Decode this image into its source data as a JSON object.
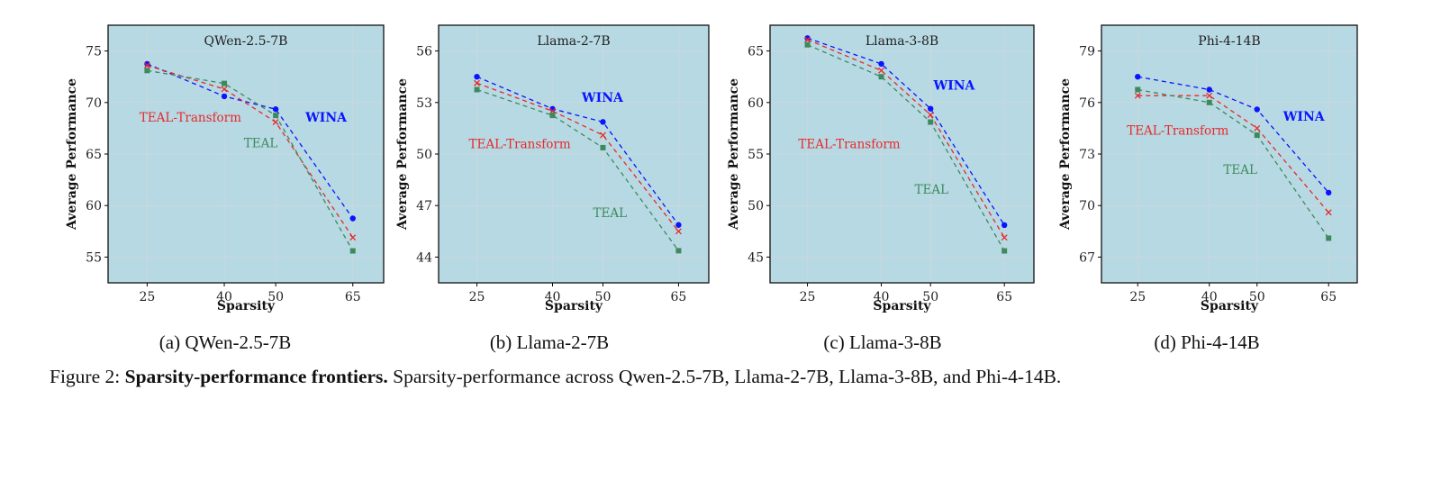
{
  "colors": {
    "background": "#b7d9e3",
    "WINA": "#0a14ff",
    "TEAL-Transform": "#e8282a",
    "TEAL": "#3d8a5c"
  },
  "chart_data": [
    {
      "type": "line",
      "title": "QWen-2.5-7B",
      "caption": "(a) QWen-2.5-7B",
      "xlabel": "Sparsity",
      "ylabel": "Average Performance",
      "x": [
        25,
        40,
        50,
        65
      ],
      "xticks": [
        25,
        40,
        50,
        65
      ],
      "xlim": [
        17.4,
        71
      ],
      "yticks": [
        55,
        60,
        65,
        70,
        75
      ],
      "ylim": [
        52.5,
        77.5
      ],
      "grid": true,
      "series": [
        {
          "name": "WINA",
          "marker": "circle",
          "values": [
            73.75,
            70.6,
            69.35,
            58.75
          ],
          "label_at": [
            59.8,
            68.6
          ]
        },
        {
          "name": "TEAL-Transform",
          "marker": "x",
          "values": [
            73.6,
            71.3,
            68.1,
            56.9
          ],
          "label_at": [
            33.4,
            68.6
          ]
        },
        {
          "name": "TEAL",
          "marker": "square",
          "values": [
            73.1,
            71.85,
            68.75,
            55.6
          ],
          "label_at": [
            47.1,
            66.1
          ]
        }
      ]
    },
    {
      "type": "line",
      "title": "Llama-2-7B",
      "caption": "(b) Llama-2-7B",
      "xlabel": "Sparsity",
      "ylabel": "Average Performance",
      "x": [
        25,
        40,
        50,
        65
      ],
      "xticks": [
        25,
        40,
        50,
        65
      ],
      "xlim": [
        17.4,
        71
      ],
      "yticks": [
        44,
        47,
        50,
        53,
        56
      ],
      "ylim": [
        42.5,
        57.5
      ],
      "grid": true,
      "series": [
        {
          "name": "WINA",
          "marker": "circle",
          "values": [
            54.5,
            52.63,
            51.87,
            45.87
          ],
          "label_at": [
            49.9,
            53.3
          ]
        },
        {
          "name": "TEAL-Transform",
          "marker": "x",
          "values": [
            54.13,
            52.5,
            51.1,
            45.5
          ],
          "label_at": [
            33.5,
            50.6
          ]
        },
        {
          "name": "TEAL",
          "marker": "square",
          "values": [
            53.75,
            52.25,
            50.37,
            44.37
          ],
          "label_at": [
            51.4,
            46.6
          ]
        }
      ]
    },
    {
      "type": "line",
      "title": "Llama-3-8B",
      "caption": "(c) Llama-3-8B",
      "xlabel": "Sparsity",
      "ylabel": "Average Performance",
      "x": [
        25,
        40,
        50,
        65
      ],
      "xticks": [
        25,
        40,
        50,
        65
      ],
      "xlim": [
        17.4,
        71
      ],
      "yticks": [
        45,
        50,
        55,
        60,
        65
      ],
      "ylim": [
        42.5,
        67.5
      ],
      "grid": true,
      "series": [
        {
          "name": "WINA",
          "marker": "circle",
          "values": [
            66.25,
            63.75,
            59.4,
            48.1
          ],
          "label_at": [
            54.8,
            61.7
          ]
        },
        {
          "name": "TEAL-Transform",
          "marker": "x",
          "values": [
            66.1,
            63.1,
            58.8,
            46.9
          ],
          "label_at": [
            33.5,
            56.0
          ]
        },
        {
          "name": "TEAL",
          "marker": "square",
          "values": [
            65.6,
            62.5,
            58.1,
            45.6
          ],
          "label_at": [
            50.2,
            51.6
          ]
        }
      ]
    },
    {
      "type": "line",
      "title": "Phi-4-14B",
      "caption": "(d) Phi-4-14B",
      "xlabel": "Sparsity",
      "ylabel": "Average Performance",
      "x": [
        25,
        40,
        50,
        65
      ],
      "xticks": [
        25,
        40,
        50,
        65
      ],
      "xlim": [
        17.4,
        71
      ],
      "yticks": [
        67,
        70,
        73,
        76,
        79
      ],
      "ylim": [
        65.5,
        80.5
      ],
      "grid": true,
      "series": [
        {
          "name": "WINA",
          "marker": "circle",
          "values": [
            77.5,
            76.75,
            75.6,
            70.75
          ],
          "label_at": [
            59.8,
            75.2
          ]
        },
        {
          "name": "TEAL-Transform",
          "marker": "x",
          "values": [
            76.4,
            76.4,
            74.5,
            69.6
          ],
          "label_at": [
            33.4,
            74.4
          ]
        },
        {
          "name": "TEAL",
          "marker": "square",
          "values": [
            76.75,
            76.0,
            74.1,
            68.1
          ],
          "label_at": [
            46.5,
            72.1
          ]
        }
      ]
    }
  ],
  "figure_caption": {
    "prefix": "Figure 2: ",
    "bold": "Sparsity-performance frontiers.",
    "text": " Sparsity-performance across Qwen-2.5-7B, Llama-2-7B, Llama-3-8B, and Phi-4-14B."
  }
}
